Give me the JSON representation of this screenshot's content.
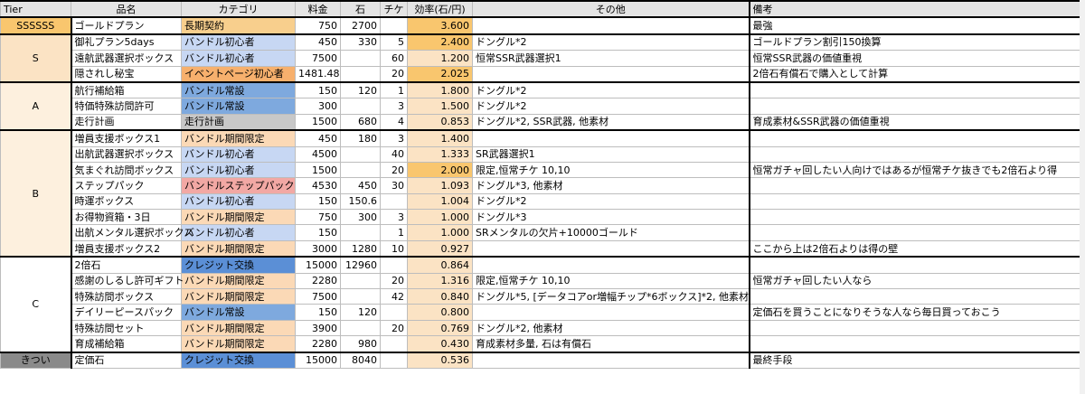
{
  "headers": [
    "Tier",
    "品名",
    "カテゴリ",
    "料金",
    "石",
    "チケ",
    "効率(石/円)",
    "その他",
    "備考"
  ],
  "groups": [
    {
      "tier": "SSSSSS",
      "tier_class": "tier-sss",
      "rows": [
        {
          "name": "ゴールドプラン",
          "category": "長期契約",
          "cat_class": "cat-long",
          "price": "750",
          "stones": "2700",
          "tickets": "",
          "efficiency": "3.600",
          "other": "",
          "note": "最強"
        }
      ]
    },
    {
      "tier": "S",
      "tier_class": "tier-s",
      "rows": [
        {
          "name": "御礼プラン5days",
          "category": "バンドル初心者",
          "cat_class": "cat-init",
          "price": "450",
          "stones": "330",
          "tickets": "5",
          "efficiency": "2.400",
          "other": "ドングル*2",
          "note": "ゴールドプラン割引150換算"
        },
        {
          "name": "遠航武器選択ボックス",
          "category": "バンドル初心者",
          "cat_class": "cat-init",
          "price": "7500",
          "stones": "",
          "tickets": "60",
          "efficiency": "1.200",
          "other": "恒常SSR武器選択1",
          "note": "恒常SSR武器の価値重視"
        },
        {
          "name": "隠されし秘宝",
          "category": "イベントページ初心者",
          "cat_class": "cat-event",
          "price": "1481.48",
          "stones": "",
          "tickets": "20",
          "efficiency": "2.025",
          "other": "",
          "note": "2倍石有償石で購入として計算"
        }
      ]
    },
    {
      "tier": "A",
      "tier_class": "tier-a",
      "rows": [
        {
          "name": "航行補給箱",
          "category": "バンドル常設",
          "cat_class": "cat-stand",
          "price": "150",
          "stones": "120",
          "tickets": "1",
          "efficiency": "1.800",
          "other": "ドングル*2",
          "note": ""
        },
        {
          "name": "特価特殊訪問許可",
          "category": "バンドル常設",
          "cat_class": "cat-stand",
          "price": "300",
          "stones": "",
          "tickets": "3",
          "efficiency": "1.500",
          "other": "ドングル*2",
          "note": ""
        },
        {
          "name": "走行計画",
          "category": "走行計画",
          "cat_class": "cat-run",
          "price": "1500",
          "stones": "680",
          "tickets": "4",
          "efficiency": "0.853",
          "other": "ドングル*2, SSR武器, 他素材",
          "note": "育成素材&SSR武器の価値重視"
        }
      ]
    },
    {
      "tier": "B",
      "tier_class": "tier-b",
      "rows": [
        {
          "name": "増員支援ボックス1",
          "category": "バンドル期間限定",
          "cat_class": "cat-limit",
          "price": "450",
          "stones": "180",
          "tickets": "3",
          "efficiency": "1.400",
          "other": "",
          "note": ""
        },
        {
          "name": "出航武器選択ボックス",
          "category": "バンドル初心者",
          "cat_class": "cat-init",
          "price": "4500",
          "stones": "",
          "tickets": "40",
          "efficiency": "1.333",
          "other": "SR武器選択1",
          "note": ""
        },
        {
          "name": "気まぐれ訪問ボックス",
          "category": "バンドル初心者",
          "cat_class": "cat-init",
          "price": "1500",
          "stones": "",
          "tickets": "20",
          "efficiency": "2.000",
          "other": "限定,恒常チケ 10,10",
          "note": "恒常ガチャ回したい人向けではあるが恒常チケ抜きでも2倍石より得"
        },
        {
          "name": "ステップパック",
          "category": "バンドルステップパック",
          "cat_class": "cat-step",
          "price": "4530",
          "stones": "450",
          "tickets": "30",
          "efficiency": "1.093",
          "other": "ドングル*3, 他素材",
          "note": ""
        },
        {
          "name": "時運ボックス",
          "category": "バンドル初心者",
          "cat_class": "cat-init",
          "price": "150",
          "stones": "150.6",
          "tickets": "",
          "efficiency": "1.004",
          "other": "ドングル*2",
          "note": ""
        },
        {
          "name": "お得物資箱・3日",
          "category": "バンドル期間限定",
          "cat_class": "cat-limit",
          "price": "750",
          "stones": "300",
          "tickets": "3",
          "efficiency": "1.000",
          "other": "ドングル*3",
          "note": ""
        },
        {
          "name": "出航メンタル選択ボックス",
          "category": "バンドル初心者",
          "cat_class": "cat-init",
          "price": "150",
          "stones": "",
          "tickets": "1",
          "efficiency": "1.000",
          "other": "SRメンタルの欠片+10000ゴールド",
          "note": ""
        },
        {
          "name": "増員支援ボックス2",
          "category": "バンドル期間限定",
          "cat_class": "cat-limit",
          "price": "3000",
          "stones": "1280",
          "tickets": "10",
          "efficiency": "0.927",
          "other": "",
          "note": "ここから上は2倍石よりは得の壁"
        }
      ]
    },
    {
      "tier": "C",
      "tier_class": "tier-c",
      "rows": [
        {
          "name": "2倍石",
          "category": "クレジット交換",
          "cat_class": "cat-credit",
          "price": "15000",
          "stones": "12960",
          "tickets": "",
          "efficiency": "0.864",
          "other": "",
          "note": ""
        },
        {
          "name": "感謝のしるし許可ギフト",
          "category": "バンドル期間限定",
          "cat_class": "cat-limit",
          "price": "2280",
          "stones": "",
          "tickets": "20",
          "efficiency": "1.316",
          "other": "限定,恒常チケ 10,10",
          "note": "恒常ガチャ回したい人なら"
        },
        {
          "name": "特殊訪問ボックス",
          "category": "バンドル期間限定",
          "cat_class": "cat-limit",
          "price": "7500",
          "stones": "",
          "tickets": "42",
          "efficiency": "0.840",
          "other": "ドングル*5, [データコアor増幅チップ*6ボックス]*2, 他素材",
          "note": ""
        },
        {
          "name": "デイリーピースパック",
          "category": "バンドル常設",
          "cat_class": "cat-stand",
          "price": "150",
          "stones": "120",
          "tickets": "",
          "efficiency": "0.800",
          "other": "",
          "note": "定価石を買うことになりそうな人なら毎日買っておこう"
        },
        {
          "name": "特殊訪問セット",
          "category": "バンドル期間限定",
          "cat_class": "cat-limit",
          "price": "3900",
          "stones": "",
          "tickets": "20",
          "efficiency": "0.769",
          "other": "ドングル*2, 他素材",
          "note": ""
        },
        {
          "name": "育成補給箱",
          "category": "バンドル期間限定",
          "cat_class": "cat-limit",
          "price": "2280",
          "stones": "980",
          "tickets": "",
          "efficiency": "0.430",
          "other": "育成素材多量, 石は有償石",
          "note": ""
        }
      ]
    },
    {
      "tier": "きつい",
      "tier_class": "tier-x",
      "rows": [
        {
          "name": "定価石",
          "category": "クレジット交換",
          "cat_class": "cat-credit",
          "price": "15000",
          "stones": "8040",
          "tickets": "",
          "efficiency": "0.536",
          "other": "",
          "note": "最終手段"
        }
      ]
    }
  ]
}
